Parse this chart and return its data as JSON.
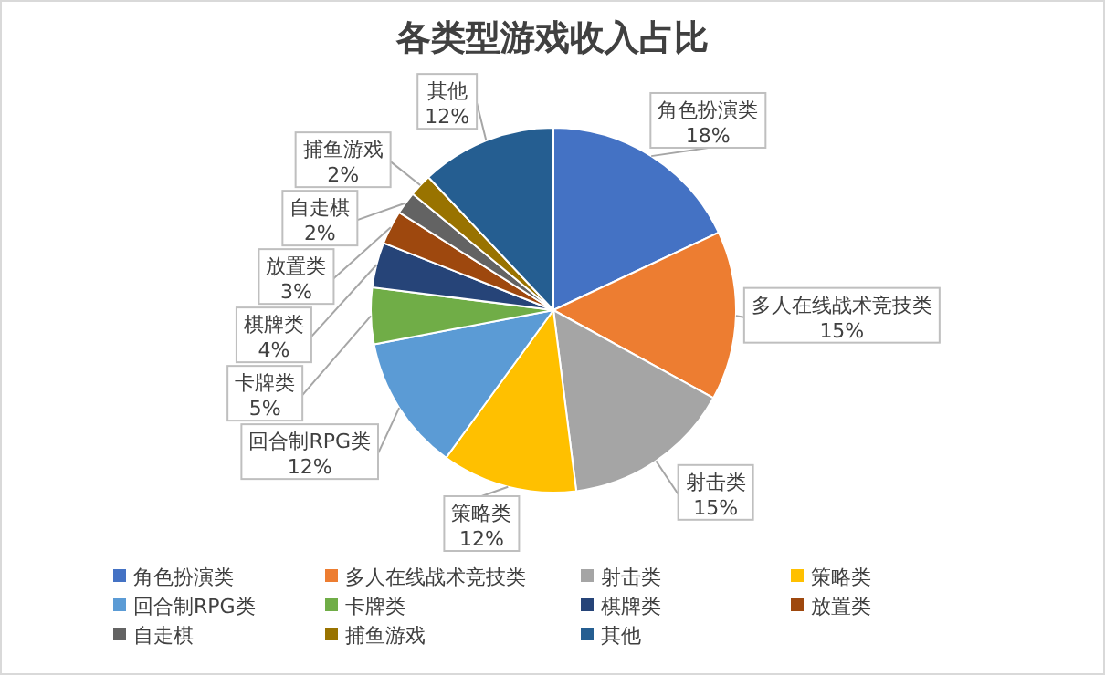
{
  "chart_data": {
    "type": "pie",
    "title": "各类型游戏收入占比",
    "categories": [
      "角色扮演类",
      "多人在线战术竞技类",
      "射击类",
      "策略类",
      "回合制RPG类",
      "卡牌类",
      "棋牌类",
      "放置类",
      "自走棋",
      "捕鱼游戏",
      "其他"
    ],
    "values": [
      18,
      15,
      15,
      12,
      12,
      5,
      4,
      3,
      2,
      2,
      12
    ],
    "colors": [
      "#4472c4",
      "#ed7d31",
      "#a5a5a5",
      "#ffc000",
      "#5b9bd5",
      "#70ad47",
      "#264478",
      "#9e480e",
      "#636363",
      "#997300",
      "#255e91"
    ],
    "value_labels": [
      "18%",
      "15%",
      "15%",
      "12%",
      "12%",
      "5%",
      "4%",
      "3%",
      "2%",
      "2%",
      "12%"
    ],
    "legend": "bottom"
  }
}
